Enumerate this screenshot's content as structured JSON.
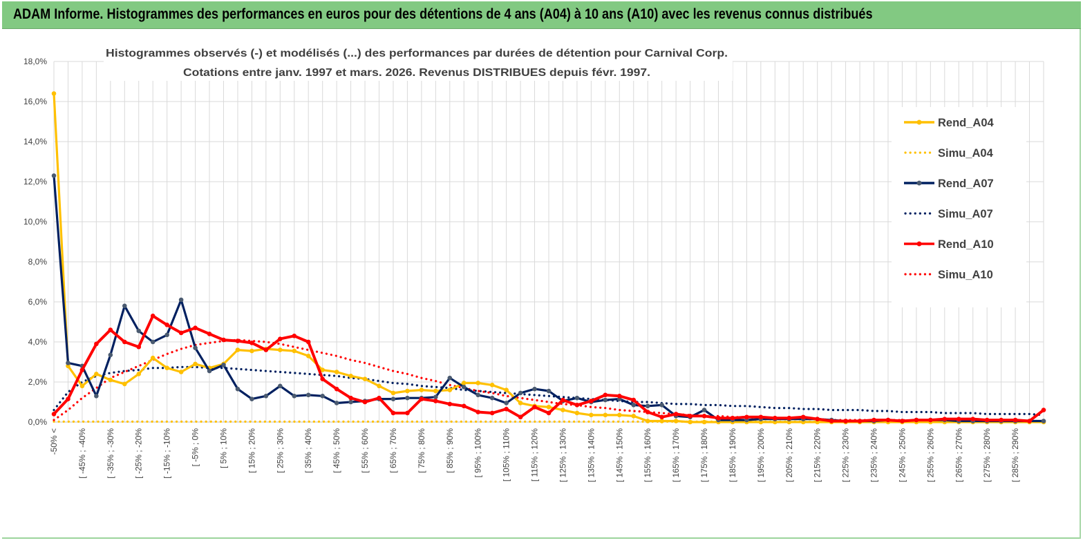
{
  "header": {
    "title": "ADAM Informe. Histogrammes des performances en euros pour des détentions de 4 ans (A04) à 10 ans (A10) avec les revenus connus distribués"
  },
  "chart_data": {
    "type": "line",
    "title": "Histogrammes observés (-)  et modélisés (...) des performances par durées de détention pour Carnival Corp.",
    "subtitle": "Cotations entre janv. 1997 et mars. 2026. Revenus DISTRIBUES depuis févr. 1997.",
    "xlabel": "",
    "ylabel": "",
    "ylim": [
      0,
      18
    ],
    "y_ticks": [
      "0,0%",
      "2,0%",
      "4,0%",
      "6,0%",
      "8,0%",
      "10,0%",
      "12,0%",
      "14,0%",
      "16,0%",
      "18,0%"
    ],
    "grid": true,
    "legend_position": "right",
    "x_labels": [
      "-50% <",
      "[ -45% ; -40%",
      "[ -35% ; -30%",
      "[ -25% ; -20%",
      "[ -15% ; -10%",
      "[ -5% ; 0%",
      "[ 5% ; 10%",
      "[ 15% ; 20%",
      "[ 25% ; 30%",
      "[ 35% ; 40%",
      "[ 45% ; 50%",
      "[ 55% ; 60%",
      "[ 65% ; 70%",
      "[ 75% ; 80%",
      "[ 85% ; 90%",
      "[ 95% ; 100%",
      "[ 105% ; 110%",
      "[ 115% ; 120%",
      "[ 125% ; 130%",
      "[ 135% ; 140%",
      "[ 145% ; 150%",
      "[ 155% ; 160%",
      "[ 165% ; 170%",
      "[ 175% ; 180%",
      "[ 185% ; 190%",
      "[ 195% ; 200%",
      "[ 205% ; 210%",
      "[ 215% ; 220%",
      "[ 225% ; 230%",
      "[ 235% ; 240%",
      "[ 245% ; 250%",
      "[ 255% ; 260%",
      "[ 265% ; 270%",
      "[ 275% ; 280%",
      "[ 285% ; 290%"
    ],
    "series": [
      {
        "name": "Rend_A04",
        "style": "solid",
        "color": "#ffc000",
        "values": [
          16.4,
          2.8,
          1.8,
          2.4,
          2.1,
          1.9,
          2.4,
          3.2,
          2.7,
          2.5,
          2.9,
          2.7,
          2.9,
          3.6,
          3.55,
          3.65,
          3.6,
          3.55,
          3.3,
          2.6,
          2.5,
          2.3,
          2.15,
          1.8,
          1.45,
          1.55,
          1.6,
          1.55,
          1.6,
          1.95,
          1.95,
          1.85,
          1.6,
          0.95,
          0.8,
          0.75,
          0.6,
          0.45,
          0.35,
          0.35,
          0.35,
          0.3,
          0.05,
          0.05,
          0.05,
          0.0,
          0.0,
          0.0,
          0.0,
          0.0,
          0.0,
          0.0,
          0.0,
          0.0,
          0.0,
          0.0,
          0.0,
          0.0,
          0.0,
          0.0,
          0.0,
          0.0,
          0.0,
          0.0,
          0.0,
          0.0,
          0.0,
          0.0,
          0.0,
          0.0,
          0.0
        ]
      },
      {
        "name": "Simu_A04",
        "style": "dotted",
        "color": "#ffc000",
        "values": [
          0.02,
          0.02,
          0.02,
          0.02,
          0.02,
          0.02,
          0.02,
          0.02,
          0.02,
          0.02,
          0.02,
          0.02,
          0.02,
          0.02,
          0.02,
          0.02,
          0.02,
          0.02,
          0.02,
          0.02,
          0.02,
          0.02,
          0.02,
          0.02,
          0.02,
          0.02,
          0.02,
          0.02,
          0.02,
          0.02,
          0.02,
          0.02,
          0.02,
          0.02,
          0.02,
          0.02,
          0.02,
          0.02,
          0.02,
          0.02,
          0.02,
          0.02,
          0.02,
          0.02,
          0.02,
          0.02,
          0.02,
          0.02,
          0.02,
          0.02,
          0.02,
          0.02,
          0.02,
          0.02,
          0.02,
          0.02,
          0.02,
          0.02,
          0.02,
          0.02,
          0.02,
          0.02,
          0.02,
          0.02,
          0.02,
          0.02,
          0.02,
          0.02,
          0.02,
          0.02,
          0.02
        ]
      },
      {
        "name": "Rend_A07",
        "style": "solid",
        "color": "#002060",
        "values": [
          12.3,
          2.95,
          2.8,
          1.3,
          3.35,
          5.8,
          4.55,
          4.0,
          4.35,
          6.1,
          3.7,
          2.55,
          2.85,
          1.65,
          1.15,
          1.3,
          1.8,
          1.3,
          1.35,
          1.3,
          0.95,
          1.0,
          1.05,
          1.15,
          1.15,
          1.2,
          1.2,
          1.25,
          2.2,
          1.75,
          1.35,
          1.2,
          0.95,
          1.45,
          1.65,
          1.55,
          1.05,
          1.2,
          1.0,
          1.1,
          1.15,
          0.85,
          0.8,
          0.85,
          0.3,
          0.25,
          0.6,
          0.1,
          0.1,
          0.1,
          0.15,
          0.15,
          0.15,
          0.15,
          0.15,
          0.1,
          0.05,
          0.05,
          0.05,
          0.1,
          0.05,
          0.1,
          0.1,
          0.1,
          0.05,
          0.05,
          0.05,
          0.05,
          0.05,
          0.05,
          0.05
        ]
      },
      {
        "name": "Simu_A07",
        "style": "dotted",
        "color": "#002060",
        "values": [
          0.6,
          1.5,
          2.0,
          2.3,
          2.45,
          2.55,
          2.6,
          2.7,
          2.7,
          2.75,
          2.75,
          2.7,
          2.7,
          2.65,
          2.6,
          2.55,
          2.5,
          2.45,
          2.4,
          2.35,
          2.3,
          2.2,
          2.15,
          2.05,
          1.95,
          1.9,
          1.8,
          1.75,
          1.7,
          1.6,
          1.55,
          1.5,
          1.45,
          1.4,
          1.35,
          1.3,
          1.25,
          1.2,
          1.15,
          1.1,
          1.05,
          1.0,
          1.0,
          0.95,
          0.9,
          0.9,
          0.85,
          0.85,
          0.8,
          0.8,
          0.75,
          0.7,
          0.7,
          0.65,
          0.65,
          0.6,
          0.6,
          0.6,
          0.55,
          0.55,
          0.5,
          0.5,
          0.5,
          0.45,
          0.45,
          0.45,
          0.4,
          0.4,
          0.4,
          0.4,
          0.35
        ]
      },
      {
        "name": "Rend_A10",
        "style": "solid",
        "color": "#ff0000",
        "values": [
          0.4,
          1.15,
          2.6,
          3.9,
          4.6,
          4.0,
          3.75,
          5.3,
          4.85,
          4.45,
          4.7,
          4.4,
          4.1,
          4.05,
          3.95,
          3.6,
          4.15,
          4.3,
          4.0,
          2.15,
          1.65,
          1.2,
          1.0,
          1.2,
          0.45,
          0.45,
          1.15,
          1.05,
          0.9,
          0.8,
          0.5,
          0.45,
          0.65,
          0.25,
          0.75,
          0.45,
          1.1,
          0.85,
          1.05,
          1.35,
          1.3,
          1.1,
          0.5,
          0.25,
          0.4,
          0.3,
          0.3,
          0.2,
          0.2,
          0.25,
          0.25,
          0.2,
          0.2,
          0.25,
          0.15,
          0.05,
          0.05,
          0.05,
          0.1,
          0.1,
          0.05,
          0.1,
          0.1,
          0.15,
          0.15,
          0.15,
          0.1,
          0.1,
          0.1,
          0.05,
          0.6
        ]
      },
      {
        "name": "Simu_A10",
        "style": "dotted",
        "color": "#ff0000",
        "values": [
          0.1,
          0.6,
          1.2,
          1.7,
          2.2,
          2.5,
          2.8,
          3.1,
          3.4,
          3.65,
          3.85,
          3.95,
          4.05,
          4.1,
          4.05,
          4.0,
          3.9,
          3.75,
          3.6,
          3.45,
          3.3,
          3.1,
          2.95,
          2.75,
          2.55,
          2.4,
          2.2,
          2.05,
          1.85,
          1.7,
          1.55,
          1.45,
          1.3,
          1.2,
          1.1,
          1.0,
          0.9,
          0.85,
          0.75,
          0.7,
          0.6,
          0.55,
          0.5,
          0.45,
          0.4,
          0.35,
          0.3,
          0.3,
          0.25,
          0.25,
          0.2,
          0.2,
          0.15,
          0.15,
          0.15,
          0.1,
          0.1,
          0.1,
          0.1,
          0.1,
          0.1,
          0.05,
          0.05,
          0.05,
          0.05,
          0.05,
          0.05,
          0.05,
          0.05,
          0.05,
          0.05
        ]
      }
    ]
  }
}
